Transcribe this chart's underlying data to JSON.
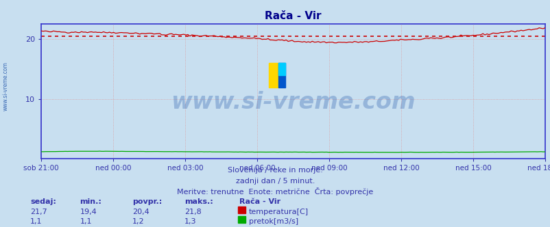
{
  "title": "Rača - Vir",
  "title_color": "#00008b",
  "bg_color": "#c8dff0",
  "plot_bg_color": "#c8dff0",
  "border_color": "#3333cc",
  "grid_color": "#dd9999",
  "tick_color": "#3333aa",
  "label_color": "#3333aa",
  "temp_color": "#cc0000",
  "flow_color": "#00aa00",
  "avg_line_color": "#cc0000",
  "watermark_color": "#2255aa",
  "temp_avg": 20.4,
  "ylim": [
    0,
    22.5
  ],
  "yticks": [
    10,
    20
  ],
  "n_points": 252,
  "xtick_labels": [
    "sob 21:00",
    "ned 00:00",
    "ned 03:00",
    "ned 06:00",
    "ned 09:00",
    "ned 12:00",
    "ned 15:00",
    "ned 18:00"
  ],
  "subtitle1": "Slovenija / reke in morje.",
  "subtitle2": "zadnji dan / 5 minut.",
  "subtitle3": "Meritve: trenutne  Enote: metrične  Črta: povprečje",
  "stat_headers": [
    "sedaj:",
    "min.:",
    "povpr.:",
    "maks.:"
  ],
  "stat_temp": [
    "21,7",
    "19,4",
    "20,4",
    "21,8"
  ],
  "stat_flow": [
    "1,1",
    "1,1",
    "1,2",
    "1,3"
  ],
  "legend_label_temp": "temperatura[C]",
  "legend_label_flow": "pretok[m3/s]",
  "station_label": "Rača - Vir",
  "watermark": "www.si-vreme.com",
  "left_label": "www.si-vreme.com",
  "logo_yellow": "#FFD700",
  "logo_blue": "#0055cc",
  "logo_cyan": "#00ccff"
}
